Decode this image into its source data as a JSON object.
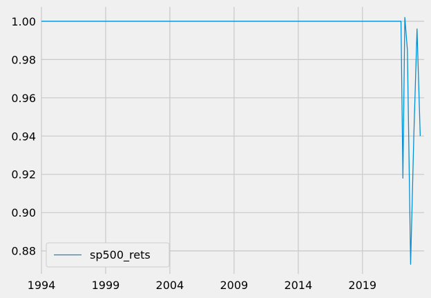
{
  "chart_data": {
    "type": "line",
    "title": "",
    "xlabel": "",
    "ylabel": "",
    "x_ticks": [
      "1994",
      "1999",
      "2004",
      "2009",
      "2014",
      "2019"
    ],
    "y_ticks": [
      "0.88",
      "0.90",
      "0.92",
      "0.94",
      "0.96",
      "0.98",
      "1.00"
    ],
    "xlim": [
      1994,
      2023.8
    ],
    "ylim": [
      0.868,
      1.0075
    ],
    "grid": true,
    "legend_position": "lower-left",
    "colors": {
      "series": "#008fd5",
      "background": "#f0f0f0",
      "grid": "#cbcbcb"
    },
    "series": [
      {
        "name": "sp500_rets",
        "x": [
          1994,
          2022.0,
          2022.15,
          2022.3,
          2022.5,
          2022.75,
          2023.0,
          2023.25,
          2023.5
        ],
        "y": [
          1.0,
          1.0,
          0.918,
          1.002,
          0.985,
          0.873,
          0.94,
          0.996,
          0.94
        ]
      }
    ]
  }
}
